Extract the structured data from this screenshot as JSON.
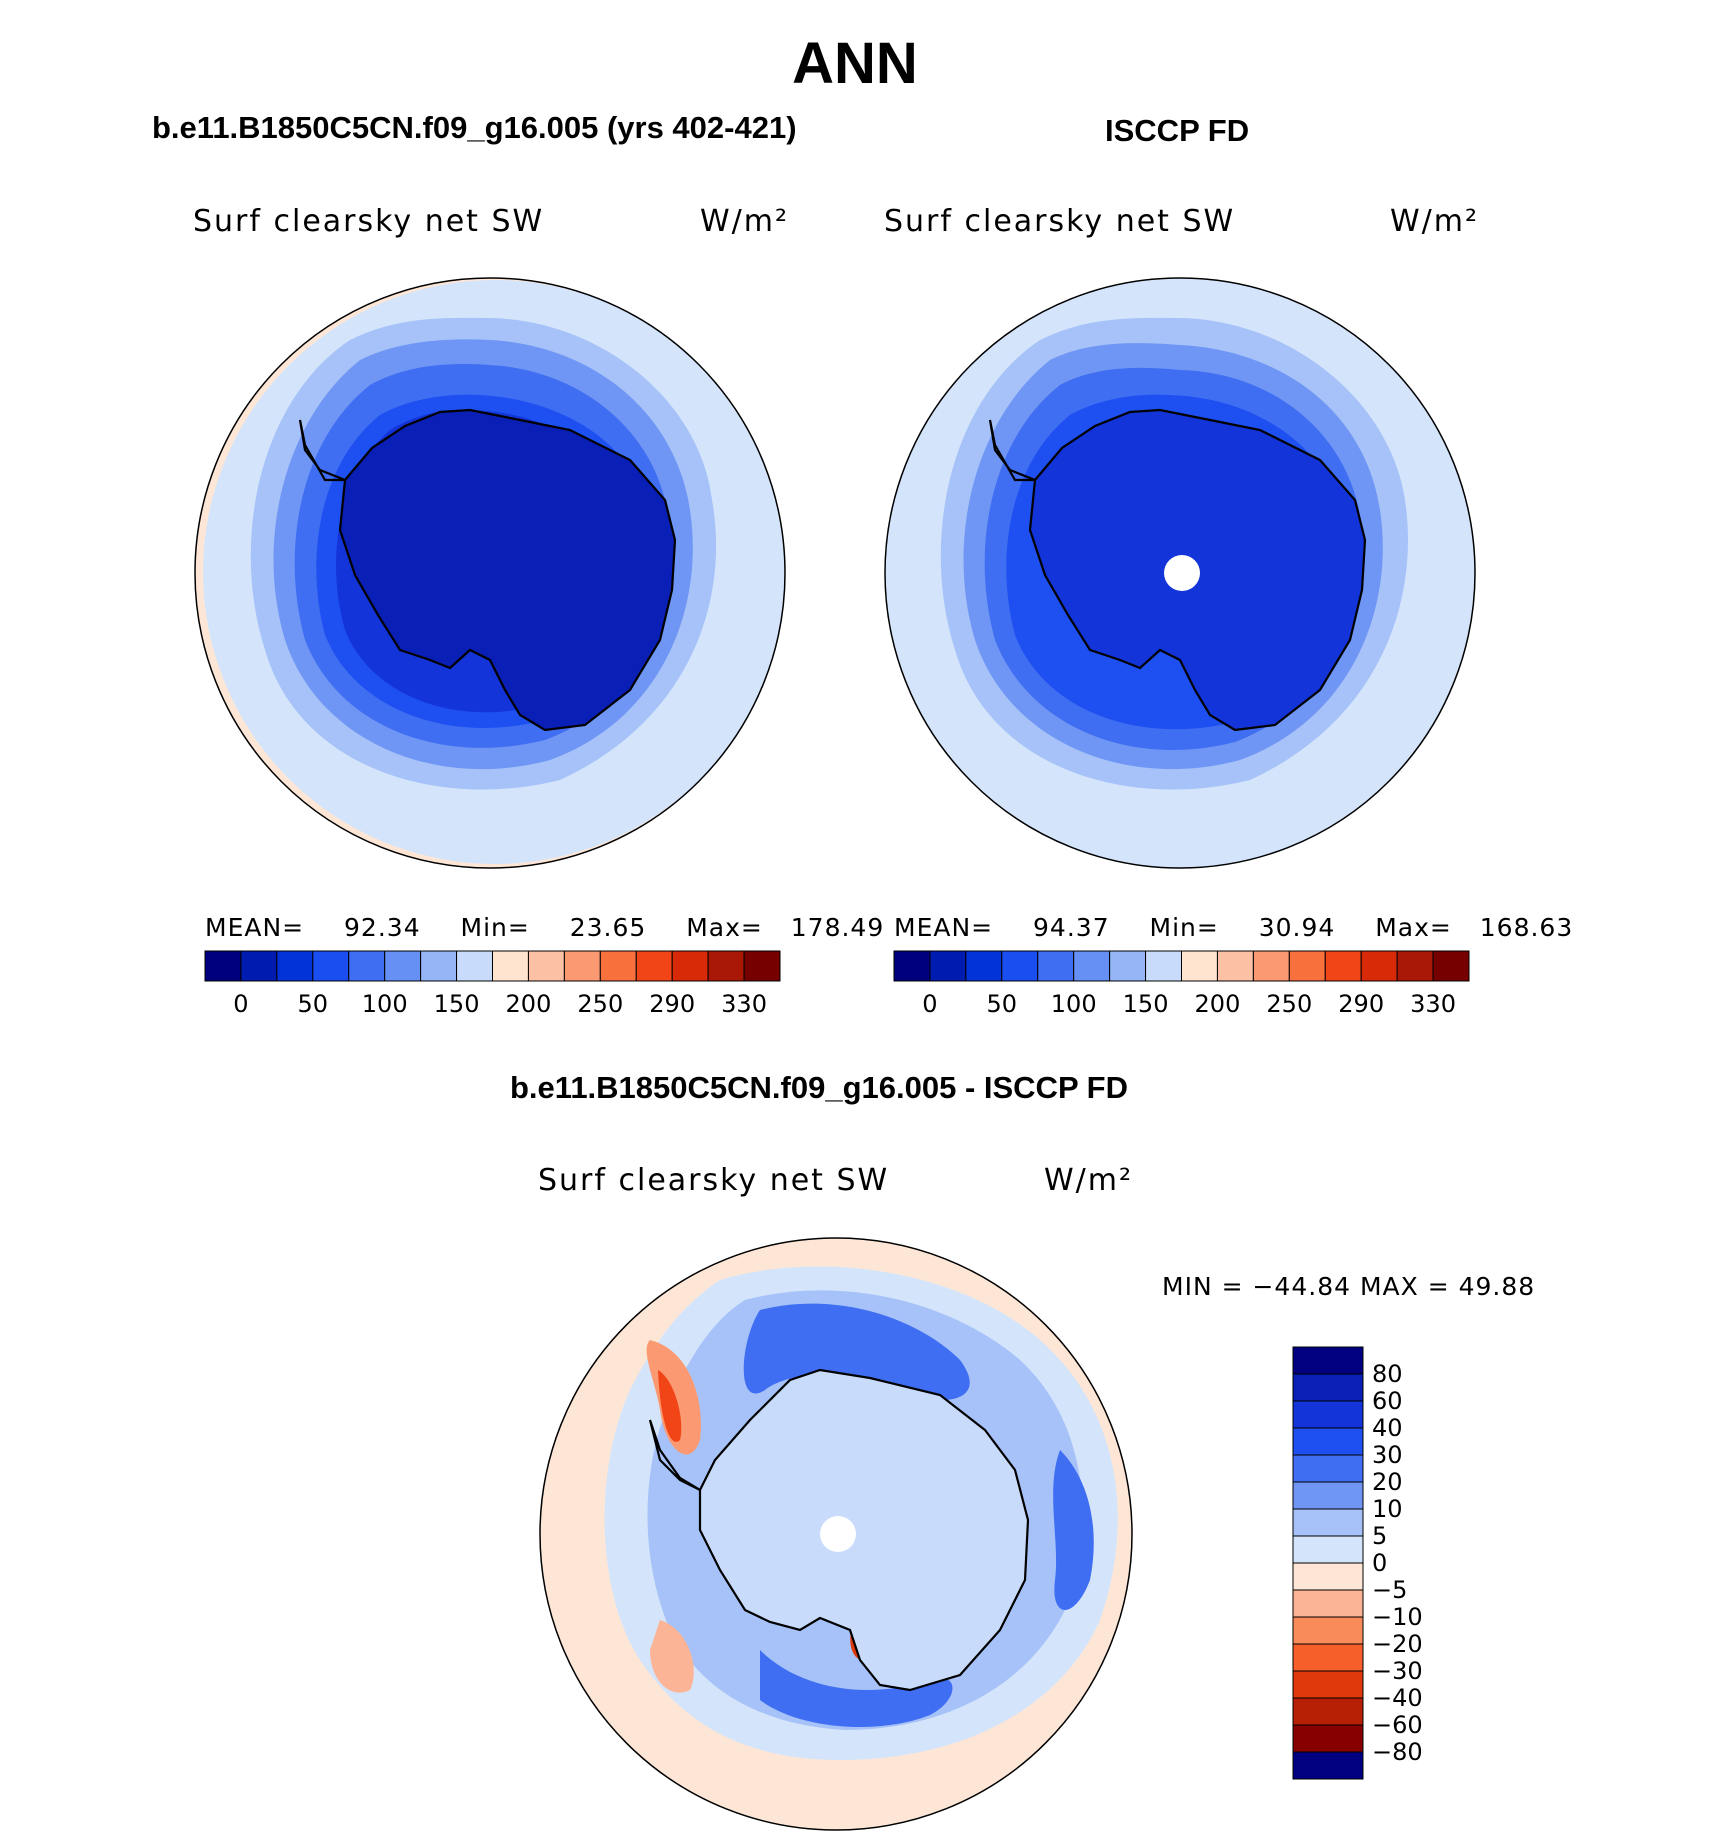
{
  "header": {
    "title": "ANN",
    "left_case": "b.e11.B1850C5CN.f09_g16.005 (yrs 402-421)",
    "right_case": "ISCCP FD",
    "diff_case": "b.e11.B1850C5CN.f09_g16.005 - ISCCP FD"
  },
  "panels": {
    "model": {
      "variable": "Surf clearsky net SW",
      "units": "W/m²",
      "mean_label": "MEAN=",
      "mean": "92.34",
      "min_label": "Min=",
      "min": "23.65",
      "max_label": "Max=",
      "max": "178.49"
    },
    "obs": {
      "variable": "Surf clearsky net SW",
      "units": "W/m²",
      "mean_label": "MEAN=",
      "mean": "94.37",
      "min_label": "Min=",
      "min": "30.94",
      "max_label": "Max=",
      "max": "168.63"
    },
    "diff": {
      "variable": "Surf clearsky net SW",
      "units": "W/m²",
      "range_text": "MIN = −44.84 MAX =   49.88"
    }
  },
  "colorbars": {
    "field": {
      "colors": [
        "#00007e",
        "#001bb0",
        "#0233d8",
        "#1a4ef0",
        "#3f6ef2",
        "#6690f3",
        "#95b5f7",
        "#c8dbfa",
        "#ffe4d0",
        "#fcc0a4",
        "#fb9a72",
        "#f8713d",
        "#f14518",
        "#d82a06",
        "#a91806",
        "#760000"
      ],
      "ticks": [
        "0",
        "50",
        "100",
        "150",
        "200",
        "250",
        "290",
        "330"
      ]
    },
    "diff": {
      "colors": [
        "#000080",
        "#0a1fb5",
        "#1234d8",
        "#1e4ff0",
        "#3f6ef2",
        "#6f96f4",
        "#a6c2f8",
        "#d4e5fb",
        "#fde6d6",
        "#fbb496",
        "#f98a5a",
        "#f65f2a",
        "#e03a0c",
        "#b82006",
        "#860000"
      ],
      "ticks": [
        "80",
        "60",
        "40",
        "30",
        "20",
        "10",
        "5",
        "0",
        "−5",
        "−10",
        "−20",
        "−30",
        "−40",
        "−60",
        "−80"
      ]
    }
  }
}
